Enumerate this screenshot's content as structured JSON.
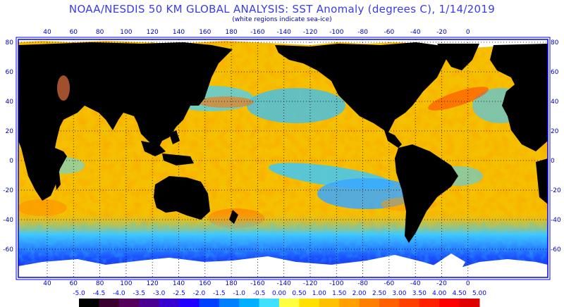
{
  "title": "NOAA/NESDIS 50 KM GLOBAL ANALYSIS: SST Anomaly (degrees C), 1/14/2019",
  "subtitle": "(white regions indicate sea-ice)",
  "lon_ticks": [
    "40",
    "60",
    "80",
    "100",
    "120",
    "140",
    "160",
    "180",
    "-160",
    "-140",
    "-120",
    "-100",
    "-80",
    "-60",
    "-40",
    "-20",
    "0"
  ],
  "lat_ticks": [
    "80",
    "60",
    "40",
    "20",
    "0",
    "-20",
    "-40",
    "-60"
  ],
  "colorbar": {
    "labels": [
      "-5.0",
      "-4.5",
      "-4.0",
      "-3.5",
      "-3.0",
      "-2.5",
      "-2.0",
      "-1.5",
      "-1.0",
      "-0.5",
      "0.00",
      "0.50",
      "1.00",
      "1.50",
      "2.00",
      "2.50",
      "3.00",
      "3.50",
      "4.00",
      "4.50",
      "5.00"
    ],
    "colors": [
      "#000000",
      "#3a0030",
      "#55005a",
      "#4a0090",
      "#3500d0",
      "#2000ff",
      "#0040ff",
      "#0080ff",
      "#00b0ff",
      "#40e0ff",
      "#ffff40",
      "#ffe000",
      "#ffc000",
      "#ffa000",
      "#ff8000",
      "#ff6000",
      "#ff4000",
      "#ff2000",
      "#ff0000",
      "#e00000"
    ]
  },
  "colors": {
    "land": "#000000",
    "ice": "#ffffff",
    "frame": "#0000ff",
    "grid": "#000000",
    "ocean_base": "#f5c000"
  }
}
